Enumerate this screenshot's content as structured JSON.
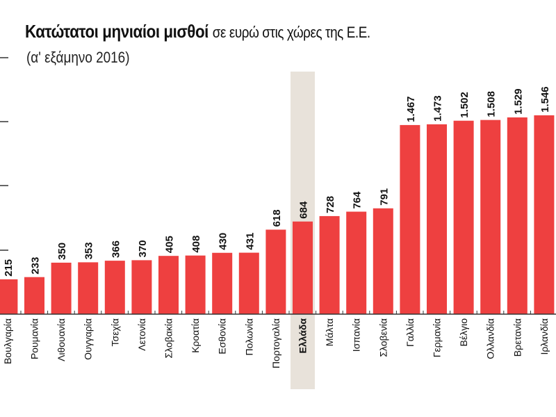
{
  "chart_data": {
    "type": "bar",
    "title": "Κατώτατοι μηνιαίοι μισθοί",
    "title_suffix": "σε ευρώ στις χώρες της Ε.Ε.",
    "subtitle": "(α' εξάμηνο 2016)",
    "categories": [
      "Βουλγαρία",
      "Ρουμανία",
      "Λιθουανία",
      "Ουγγαρία",
      "Τσεχία",
      "Λετονία",
      "Σλοβακία",
      "Κροατία",
      "Εσθονία",
      "Πολωνία",
      "Πορτογαλία",
      "Ελλάδα",
      "Μάλτα",
      "Ισπανία",
      "Σλοβενία",
      "Γαλλία",
      "Γερμανία",
      "Βέλγιο",
      "Ολλανδία",
      "Βρετανία",
      "Ιρλανδία"
    ],
    "values": [
      215,
      233,
      350,
      353,
      366,
      370,
      405,
      408,
      430,
      431,
      618,
      684,
      728,
      764,
      791,
      1467,
      1473,
      1502,
      1508,
      1529,
      1546
    ],
    "value_labels": [
      "215",
      "233",
      "350",
      "353",
      "366",
      "370",
      "405",
      "408",
      "430",
      "431",
      "618",
      "684",
      "728",
      "764",
      "791",
      "1.467",
      "1.473",
      "1.502",
      "1.508",
      "1.529",
      "1.546"
    ],
    "highlighted_category": "Ελλάδα",
    "xlabel": "",
    "ylabel": "",
    "y_tick_labels_shown": false,
    "grid": false,
    "colors": {
      "bar": "#ee4040",
      "highlight": "#e8e2da",
      "text": "#111111"
    }
  }
}
